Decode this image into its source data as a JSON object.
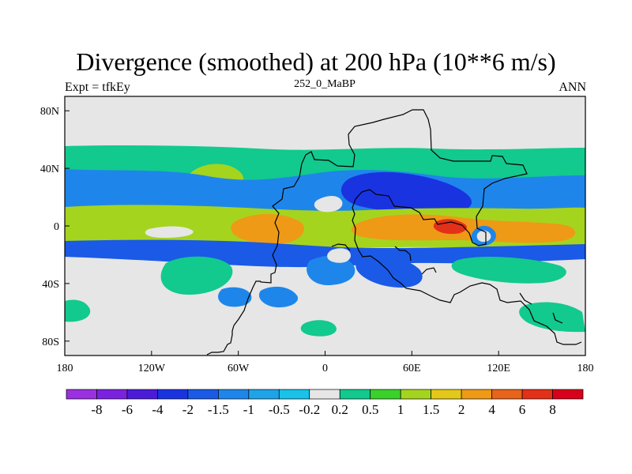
{
  "chart_data": {
    "type": "heatmap",
    "title": "Divergence (smoothed) at 200 hPa (10**6 m/s)",
    "left_label": "Expt = tfkEy",
    "center_label": "252_0_MaBP",
    "right_label": "ANN",
    "x_ticks": [
      "180",
      "120W",
      "60W",
      "0",
      "60E",
      "120E",
      "180"
    ],
    "y_ticks": [
      "80N",
      "40N",
      "0",
      "40S",
      "80S"
    ],
    "xlim": [
      -180,
      180
    ],
    "ylim": [
      -90,
      90
    ],
    "colorbar": {
      "labels": [
        "-8",
        "-6",
        "-4",
        "-2",
        "-1.5",
        "-1",
        "-0.5",
        "-0.2",
        "0.2",
        "0.5",
        "1",
        "1.5",
        "2",
        "4",
        "6",
        "8"
      ],
      "colors": [
        "#9b30e0",
        "#7b22e0",
        "#4b1bd8",
        "#1a33e0",
        "#1a5ae6",
        "#1e86ea",
        "#1ea3e8",
        "#19c2e8",
        "#e6e6e6",
        "#12c98e",
        "#3ad12a",
        "#a5d41f",
        "#e3c81a",
        "#ee9a16",
        "#e7641a",
        "#e33019",
        "#d9001b"
      ]
    },
    "regions": [
      {
        "name": "background",
        "level": "-0.2 to 0.2",
        "fill": "#e6e6e6"
      },
      {
        "name": "northern-positive-band",
        "level": "0.2 to 0.5",
        "fill": "#12c98e"
      },
      {
        "name": "northern-negative-band",
        "level": "-0.5 to -1",
        "fill": "#1e86ea"
      },
      {
        "name": "equatorial-positive-band",
        "level": "0.5 to 2",
        "fill": "#a5d41f"
      },
      {
        "name": "equatorial-maximum",
        "level": "2 to 6",
        "fill": "#ee9a16"
      },
      {
        "name": "southern-negative-band",
        "level": "-0.5 to -2",
        "fill": "#1a5ae6"
      },
      {
        "name": "southern-positive-patches",
        "level": "0.2 to 0.5",
        "fill": "#12c98e"
      }
    ]
  }
}
